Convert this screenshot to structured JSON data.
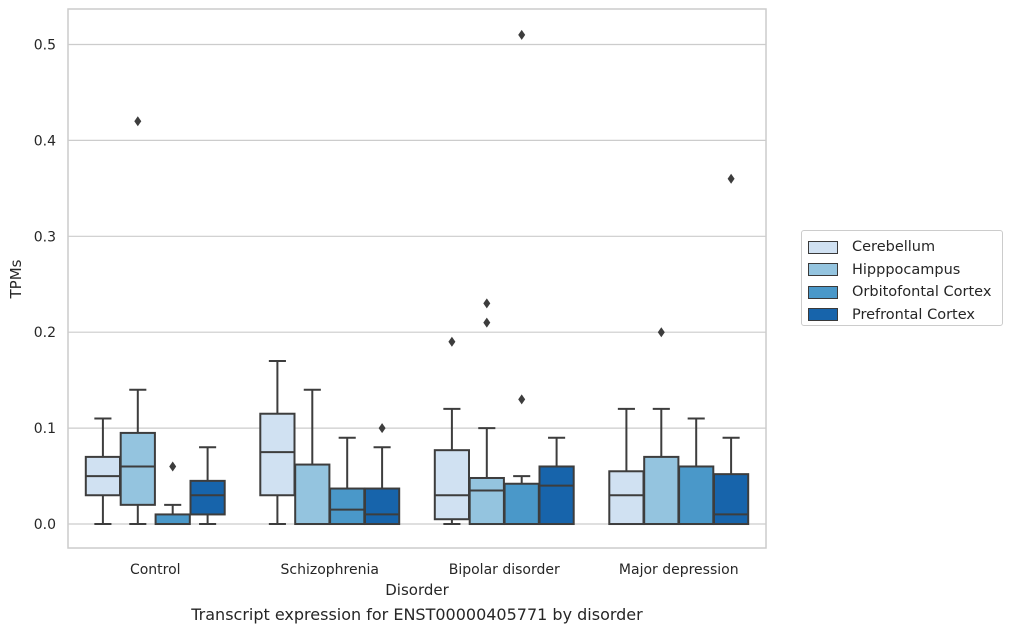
{
  "chart_data": {
    "type": "box",
    "title": "Transcript expression for ENST00000405771 by disorder",
    "xlabel": "Disorder",
    "ylabel": "TPMs",
    "ylim": [
      -0.025,
      0.537
    ],
    "yticks": [
      0.0,
      0.1,
      0.2,
      0.3,
      0.4,
      0.5
    ],
    "ytick_labels": [
      "0.0",
      "0.1",
      "0.2",
      "0.3",
      "0.4",
      "0.5"
    ],
    "grid": "horizontal",
    "legend_position": "right",
    "categories": [
      "Control",
      "Schizophrenia",
      "Bipolar disorder",
      "Major depression"
    ],
    "series": [
      {
        "name": "Cerebellum",
        "color": "#d0e1f2",
        "boxes": [
          {
            "whisker_low": 0.0,
            "q1": 0.03,
            "median": 0.05,
            "q3": 0.07,
            "whisker_high": 0.11,
            "outliers": []
          },
          {
            "whisker_low": 0.0,
            "q1": 0.03,
            "median": 0.075,
            "q3": 0.115,
            "whisker_high": 0.17,
            "outliers": []
          },
          {
            "whisker_low": 0.0,
            "q1": 0.005,
            "median": 0.03,
            "q3": 0.077,
            "whisker_high": 0.12,
            "outliers": [
              0.19
            ]
          },
          {
            "whisker_low": 0.0,
            "q1": 0.0,
            "median": 0.03,
            "q3": 0.055,
            "whisker_high": 0.12,
            "outliers": []
          }
        ]
      },
      {
        "name": "Hipppocampus",
        "color": "#94c4df",
        "boxes": [
          {
            "whisker_low": 0.0,
            "q1": 0.02,
            "median": 0.06,
            "q3": 0.095,
            "whisker_high": 0.14,
            "outliers": [
              0.42
            ]
          },
          {
            "whisker_low": 0.0,
            "q1": 0.0,
            "median": 0.0,
            "q3": 0.062,
            "whisker_high": 0.14,
            "outliers": []
          },
          {
            "whisker_low": 0.0,
            "q1": 0.0,
            "median": 0.035,
            "q3": 0.048,
            "whisker_high": 0.1,
            "outliers": [
              0.21,
              0.23
            ]
          },
          {
            "whisker_low": 0.0,
            "q1": 0.0,
            "median": 0.0,
            "q3": 0.07,
            "whisker_high": 0.12,
            "outliers": [
              0.2
            ]
          }
        ]
      },
      {
        "name": "Orbitofontal Cortex",
        "color": "#4a98c9",
        "boxes": [
          {
            "whisker_low": 0.0,
            "q1": 0.0,
            "median": 0.0,
            "q3": 0.01,
            "whisker_high": 0.02,
            "outliers": [
              0.06
            ]
          },
          {
            "whisker_low": 0.0,
            "q1": 0.0,
            "median": 0.015,
            "q3": 0.037,
            "whisker_high": 0.09,
            "outliers": []
          },
          {
            "whisker_low": 0.0,
            "q1": 0.0,
            "median": 0.0,
            "q3": 0.042,
            "whisker_high": 0.05,
            "outliers": [
              0.13,
              0.51
            ]
          },
          {
            "whisker_low": 0.0,
            "q1": 0.0,
            "median": 0.0,
            "q3": 0.06,
            "whisker_high": 0.11,
            "outliers": []
          }
        ]
      },
      {
        "name": "Prefrontal Cortex",
        "color": "#1764ab",
        "boxes": [
          {
            "whisker_low": 0.0,
            "q1": 0.01,
            "median": 0.03,
            "q3": 0.045,
            "whisker_high": 0.08,
            "outliers": []
          },
          {
            "whisker_low": 0.0,
            "q1": 0.0,
            "median": 0.01,
            "q3": 0.037,
            "whisker_high": 0.08,
            "outliers": [
              0.1
            ]
          },
          {
            "whisker_low": 0.0,
            "q1": 0.0,
            "median": 0.04,
            "q3": 0.06,
            "whisker_high": 0.09,
            "outliers": []
          },
          {
            "whisker_low": 0.0,
            "q1": 0.0,
            "median": 0.01,
            "q3": 0.052,
            "whisker_high": 0.09,
            "outliers": [
              0.36
            ]
          }
        ]
      }
    ]
  }
}
